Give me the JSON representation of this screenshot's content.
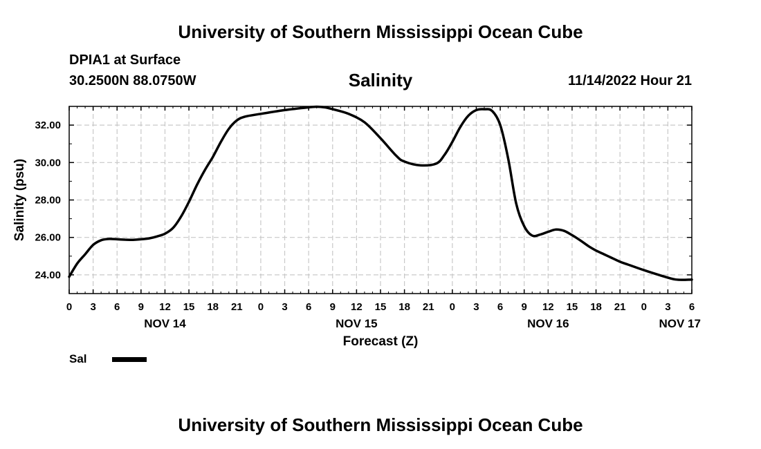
{
  "header": {
    "title": "University of Southern Mississippi Ocean Cube",
    "station": "DPIA1 at Surface",
    "coordinates": "30.2500N  88.0750W",
    "chart_title": "Salinity",
    "datetime": "11/14/2022 Hour 21"
  },
  "footer": {
    "title": "University of Southern Mississippi Ocean Cube"
  },
  "legend": {
    "label": "Sal"
  },
  "chart_data": {
    "type": "line",
    "title": "Salinity",
    "xlabel": "Forecast (Z)",
    "ylabel": "Salinity (psu)",
    "x_unit": "hours since NOV 14 00Z",
    "xlim": [
      0,
      78
    ],
    "ylim": [
      23.0,
      33.0
    ],
    "grid": true,
    "x_ticks": [
      0,
      3,
      6,
      9,
      12,
      15,
      18,
      21,
      24,
      27,
      30,
      33,
      36,
      39,
      42,
      45,
      48,
      51,
      54,
      57,
      60,
      63,
      66,
      69,
      72,
      75,
      78
    ],
    "x_tick_labels": [
      "0",
      "3",
      "6",
      "9",
      "12",
      "15",
      "18",
      "21",
      "0",
      "3",
      "6",
      "9",
      "12",
      "15",
      "18",
      "21",
      "0",
      "3",
      "6",
      "9",
      "12",
      "15",
      "18",
      "21",
      "0",
      "3",
      "6"
    ],
    "y_ticks": [
      24,
      26,
      28,
      30,
      32
    ],
    "y_tick_labels": [
      "24.00",
      "26.00",
      "28.00",
      "30.00",
      "32.00"
    ],
    "day_labels": [
      {
        "text": "NOV 14",
        "x": 12
      },
      {
        "text": "NOV 15",
        "x": 36
      },
      {
        "text": "NOV 16",
        "x": 60
      },
      {
        "text": "NOV 17",
        "x": 76.5
      }
    ],
    "series": [
      {
        "name": "Sal",
        "color": "#000000",
        "x": [
          0,
          1,
          2,
          3,
          4,
          5,
          6,
          7,
          8,
          9,
          10,
          11,
          12,
          13,
          14,
          15,
          16,
          17,
          18,
          19,
          20,
          21,
          22,
          24,
          27,
          30,
          31,
          32,
          33,
          35,
          37,
          39,
          41,
          42,
          44,
          46,
          47,
          48,
          49,
          50,
          51,
          52,
          53,
          54,
          55,
          56,
          57,
          58,
          59,
          60,
          61,
          62,
          63,
          64,
          65,
          66,
          67,
          68,
          69,
          70,
          72,
          74,
          76,
          78
        ],
        "values": [
          23.9,
          24.6,
          25.1,
          25.6,
          25.85,
          25.92,
          25.9,
          25.88,
          25.87,
          25.9,
          25.95,
          26.05,
          26.2,
          26.5,
          27.1,
          27.9,
          28.8,
          29.6,
          30.3,
          31.1,
          31.8,
          32.25,
          32.45,
          32.6,
          32.8,
          32.95,
          32.98,
          32.95,
          32.85,
          32.6,
          32.15,
          31.3,
          30.35,
          30.05,
          29.85,
          29.95,
          30.4,
          31.1,
          31.9,
          32.5,
          32.8,
          32.85,
          32.75,
          32.0,
          30.2,
          27.8,
          26.6,
          26.1,
          26.15,
          26.3,
          26.42,
          26.35,
          26.12,
          25.85,
          25.55,
          25.3,
          25.1,
          24.9,
          24.7,
          24.55,
          24.25,
          23.98,
          23.75,
          23.75
        ]
      }
    ]
  }
}
